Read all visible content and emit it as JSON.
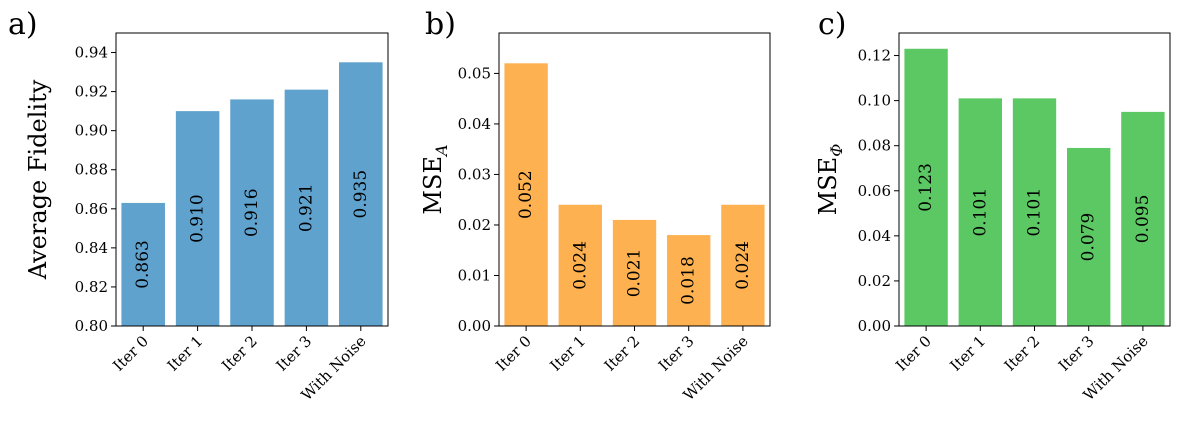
{
  "chart_data": [
    {
      "type": "bar",
      "panel_label": "a)",
      "title": "",
      "xlabel": "",
      "ylabel": "Average Fidelity",
      "ylabel_sub": "",
      "categories": [
        "Iter 0",
        "Iter 1",
        "Iter 2",
        "Iter 3",
        "With Noise"
      ],
      "values": [
        0.863,
        0.91,
        0.916,
        0.921,
        0.935
      ],
      "data_labels": [
        "0.863",
        "0.910",
        "0.916",
        "0.921",
        "0.935"
      ],
      "ylim": [
        0.8,
        0.95
      ],
      "yticks": [
        0.8,
        0.82,
        0.84,
        0.86,
        0.88,
        0.9,
        0.92,
        0.94
      ],
      "ytick_labels": [
        "0.80",
        "0.82",
        "0.84",
        "0.86",
        "0.88",
        "0.90",
        "0.92",
        "0.94"
      ],
      "color": "#5fa2ce",
      "grid": false
    },
    {
      "type": "bar",
      "panel_label": "b)",
      "title": "",
      "xlabel": "",
      "ylabel": "MSE",
      "ylabel_sub": "A",
      "categories": [
        "Iter 0",
        "Iter 1",
        "Iter 2",
        "Iter 3",
        "With Noise"
      ],
      "values": [
        0.052,
        0.024,
        0.021,
        0.018,
        0.024
      ],
      "data_labels": [
        "0.052",
        "0.024",
        "0.021",
        "0.018",
        "0.024"
      ],
      "ylim": [
        0.0,
        0.058
      ],
      "yticks": [
        0.0,
        0.01,
        0.02,
        0.03,
        0.04,
        0.05
      ],
      "ytick_labels": [
        "0.00",
        "0.01",
        "0.02",
        "0.03",
        "0.04",
        "0.05"
      ],
      "color": "#fdb150",
      "grid": false
    },
    {
      "type": "bar",
      "panel_label": "c)",
      "title": "",
      "xlabel": "",
      "ylabel": "MSE",
      "ylabel_sub": "Φ",
      "categories": [
        "Iter 0",
        "Iter 1",
        "Iter 2",
        "Iter 3",
        "With Noise"
      ],
      "values": [
        0.123,
        0.101,
        0.101,
        0.079,
        0.095
      ],
      "data_labels": [
        "0.123",
        "0.101",
        "0.101",
        "0.079",
        "0.095"
      ],
      "ylim": [
        0.0,
        0.13
      ],
      "yticks": [
        0.0,
        0.02,
        0.04,
        0.06,
        0.08,
        0.1,
        0.12
      ],
      "ytick_labels": [
        "0.00",
        "0.02",
        "0.04",
        "0.06",
        "0.08",
        "0.10",
        "0.12"
      ],
      "color": "#5cc863",
      "grid": false
    }
  ]
}
